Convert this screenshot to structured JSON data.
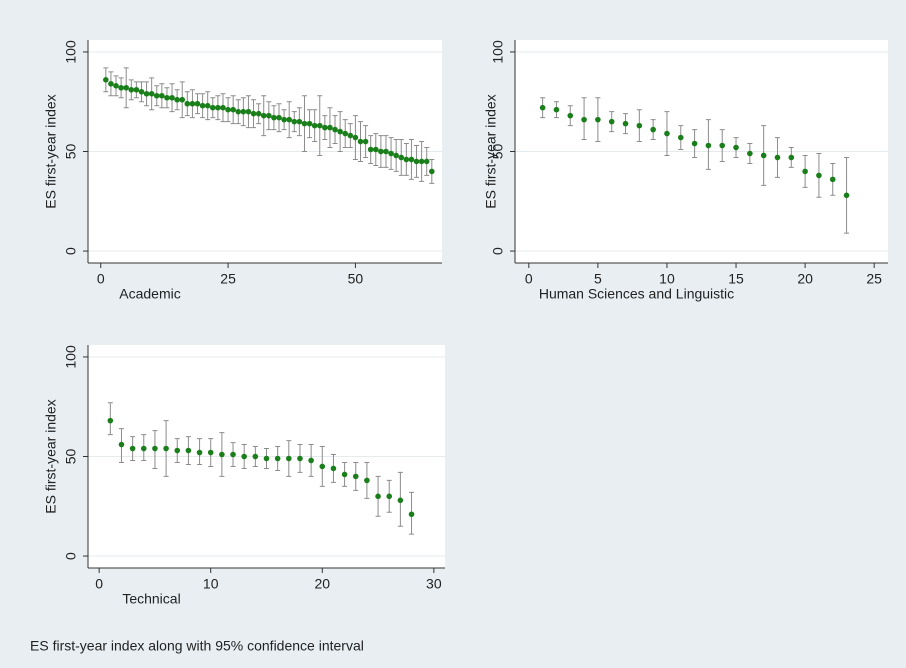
{
  "chart_data": [
    {
      "type": "errorbar",
      "xlabel": "Academic",
      "ylabel": "ES first-year index",
      "color": "#1a7f1a",
      "bar_color": "#8c8c8c",
      "x": [
        1,
        2,
        3,
        4,
        5,
        6,
        7,
        8,
        9,
        10,
        11,
        12,
        13,
        14,
        15,
        16,
        17,
        18,
        19,
        20,
        21,
        22,
        23,
        24,
        25,
        26,
        27,
        28,
        29,
        30,
        31,
        32,
        33,
        34,
        35,
        36,
        37,
        38,
        39,
        40,
        41,
        42,
        43,
        44,
        45,
        46,
        47,
        48,
        49,
        50,
        51,
        52,
        53,
        54,
        55,
        56,
        57,
        58,
        59,
        60,
        61,
        62,
        63,
        64,
        65
      ],
      "values": [
        86,
        84,
        83,
        82,
        82,
        81,
        81,
        80,
        79,
        79,
        78,
        78,
        77,
        77,
        76,
        76,
        74,
        74,
        74,
        73,
        73,
        72,
        72,
        72,
        71,
        71,
        70,
        70,
        70,
        69,
        69,
        68,
        68,
        67,
        67,
        66,
        66,
        65,
        65,
        64,
        64,
        63,
        63,
        62,
        62,
        61,
        60,
        59,
        58,
        57,
        55,
        55,
        51,
        51,
        50,
        50,
        49,
        48,
        47,
        46,
        46,
        45,
        45,
        45,
        40
      ],
      "ci_low": [
        80,
        78,
        78,
        77,
        72,
        76,
        77,
        75,
        73,
        71,
        73,
        72,
        72,
        70,
        71,
        67,
        68,
        67,
        69,
        67,
        66,
        67,
        66,
        65,
        65,
        64,
        64,
        63,
        62,
        62,
        64,
        58,
        61,
        61,
        60,
        61,
        57,
        60,
        58,
        50,
        57,
        55,
        48,
        56,
        52,
        54,
        50,
        52,
        52,
        46,
        45,
        47,
        44,
        43,
        42,
        42,
        41,
        40,
        38,
        38,
        36,
        37,
        35,
        38,
        34
      ],
      "ci_high": [
        92,
        90,
        88,
        87,
        92,
        86,
        85,
        85,
        85,
        87,
        83,
        84,
        82,
        84,
        81,
        85,
        80,
        81,
        79,
        79,
        80,
        77,
        78,
        79,
        77,
        78,
        76,
        77,
        78,
        76,
        74,
        78,
        75,
        73,
        74,
        71,
        75,
        70,
        72,
        78,
        71,
        71,
        78,
        68,
        72,
        68,
        70,
        66,
        64,
        68,
        65,
        63,
        58,
        59,
        58,
        58,
        57,
        56,
        56,
        54,
        56,
        53,
        55,
        52,
        46
      ],
      "xlim": [
        -2.5,
        67
      ],
      "ylim": [
        -6,
        106
      ],
      "xticks": [
        0,
        25,
        50
      ],
      "yticks": [
        0,
        50,
        100
      ],
      "grid": true
    },
    {
      "type": "errorbar",
      "xlabel": "Human Sciences and Linguistic",
      "ylabel": "ES first-year index",
      "color": "#1a7f1a",
      "bar_color": "#8c8c8c",
      "x": [
        1,
        2,
        3,
        4,
        5,
        6,
        7,
        8,
        9,
        10,
        11,
        12,
        13,
        14,
        15,
        16,
        17,
        18,
        19,
        20,
        21,
        22,
        23
      ],
      "values": [
        72,
        71,
        68,
        66,
        66,
        65,
        64,
        63,
        61,
        59,
        57,
        54,
        53,
        53,
        52,
        49,
        48,
        47,
        47,
        40,
        38,
        36,
        28
      ],
      "ci_low": [
        67,
        67,
        63,
        56,
        55,
        60,
        59,
        55,
        56,
        48,
        51,
        47,
        41,
        45,
        47,
        44,
        33,
        37,
        42,
        32,
        27,
        28,
        9
      ],
      "ci_high": [
        77,
        75,
        73,
        77,
        77,
        70,
        69,
        71,
        66,
        70,
        63,
        61,
        66,
        61,
        57,
        54,
        63,
        57,
        52,
        48,
        49,
        44,
        47
      ],
      "xlim": [
        -1,
        26
      ],
      "ylim": [
        -6,
        106
      ],
      "xticks": [
        0,
        5,
        10,
        15,
        20,
        25
      ],
      "yticks": [
        0,
        50,
        100
      ],
      "grid": true
    },
    {
      "type": "errorbar",
      "xlabel": "Technical",
      "ylabel": "ES first-year index",
      "color": "#1a7f1a",
      "bar_color": "#8c8c8c",
      "x": [
        1,
        2,
        3,
        4,
        5,
        6,
        7,
        8,
        9,
        10,
        11,
        12,
        13,
        14,
        15,
        16,
        17,
        18,
        19,
        20,
        21,
        22,
        23,
        24,
        25,
        26,
        27,
        28
      ],
      "values": [
        68,
        56,
        54,
        54,
        54,
        54,
        53,
        53,
        52,
        52,
        51,
        51,
        50,
        50,
        49,
        49,
        49,
        49,
        48,
        45,
        44,
        41,
        40,
        38,
        30,
        30,
        28,
        21
      ],
      "ci_low": [
        61,
        47,
        48,
        48,
        44,
        40,
        47,
        46,
        46,
        45,
        40,
        45,
        44,
        45,
        44,
        43,
        40,
        42,
        40,
        35,
        37,
        35,
        33,
        29,
        20,
        22,
        15,
        11
      ],
      "ci_high": [
        77,
        64,
        60,
        61,
        63,
        68,
        59,
        60,
        59,
        59,
        62,
        57,
        56,
        55,
        54,
        55,
        58,
        56,
        56,
        55,
        51,
        47,
        47,
        47,
        40,
        38,
        42,
        32
      ],
      "xlim": [
        -1,
        31
      ],
      "ylim": [
        -6,
        106
      ],
      "xticks": [
        0,
        10,
        20,
        30
      ],
      "yticks": [
        0,
        50,
        100
      ],
      "grid": true
    }
  ],
  "note": "ES first-year index along with 95% confidence interval"
}
